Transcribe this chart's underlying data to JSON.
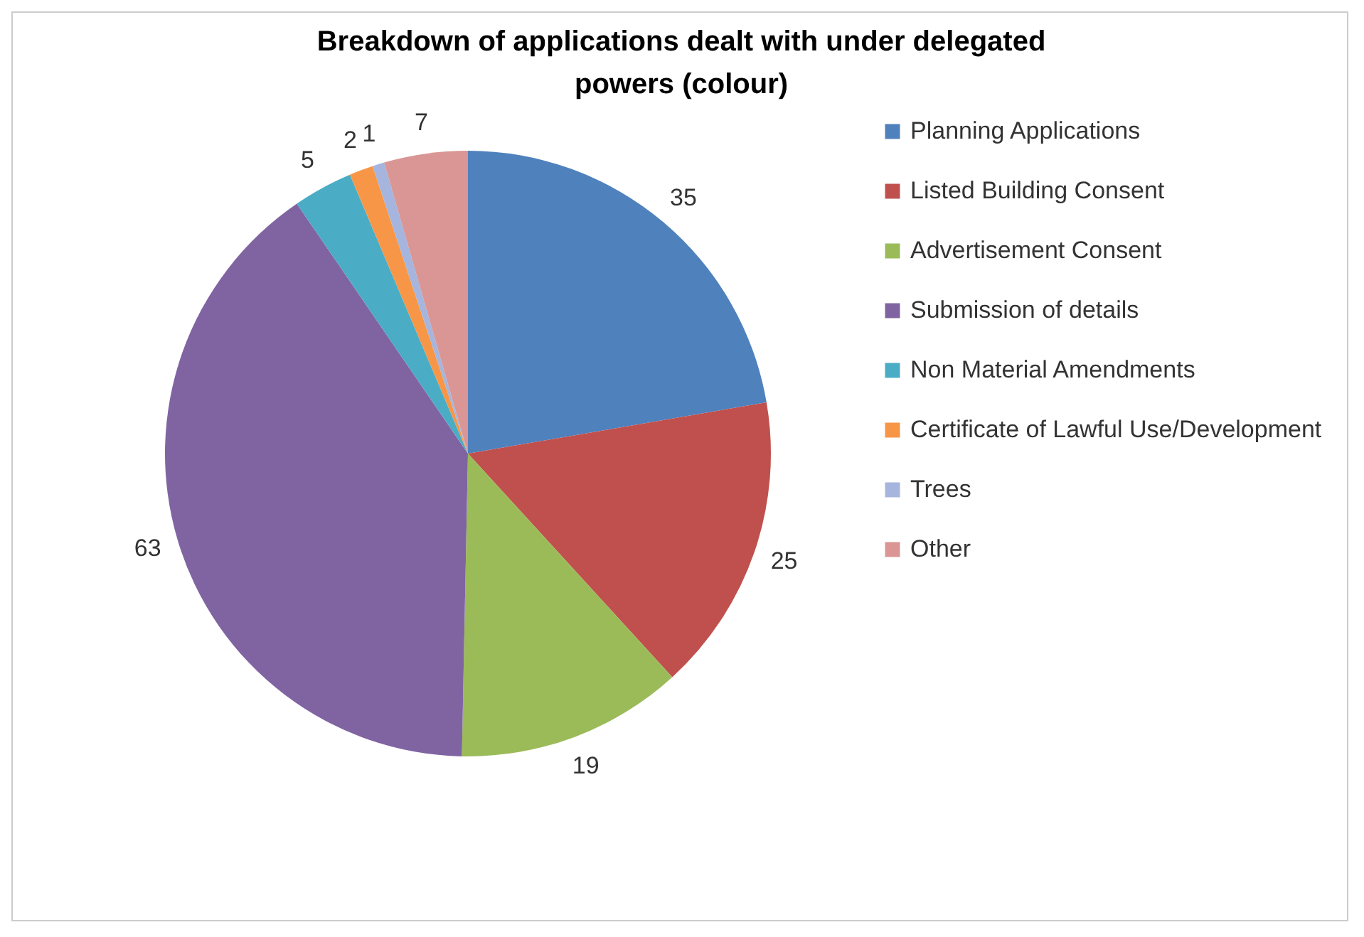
{
  "chart_data": {
    "type": "pie",
    "title": "Breakdown of applications dealt with under delegated powers (colour)",
    "categories": [
      "Planning Applications",
      "Listed Building Consent",
      "Advertisement Consent",
      "Submission of details",
      "Non Material Amendments",
      "Certificate of Lawful Use/Development",
      "Trees",
      "Other"
    ],
    "values": [
      35,
      25,
      19,
      63,
      5,
      2,
      1,
      7
    ],
    "colors": [
      "#4f81bd",
      "#c0504d",
      "#9bbb59",
      "#8064a2",
      "#4bacc6",
      "#f79646",
      "#a5b5dd",
      "#d99694"
    ],
    "data_labels": true,
    "legend": "right"
  }
}
